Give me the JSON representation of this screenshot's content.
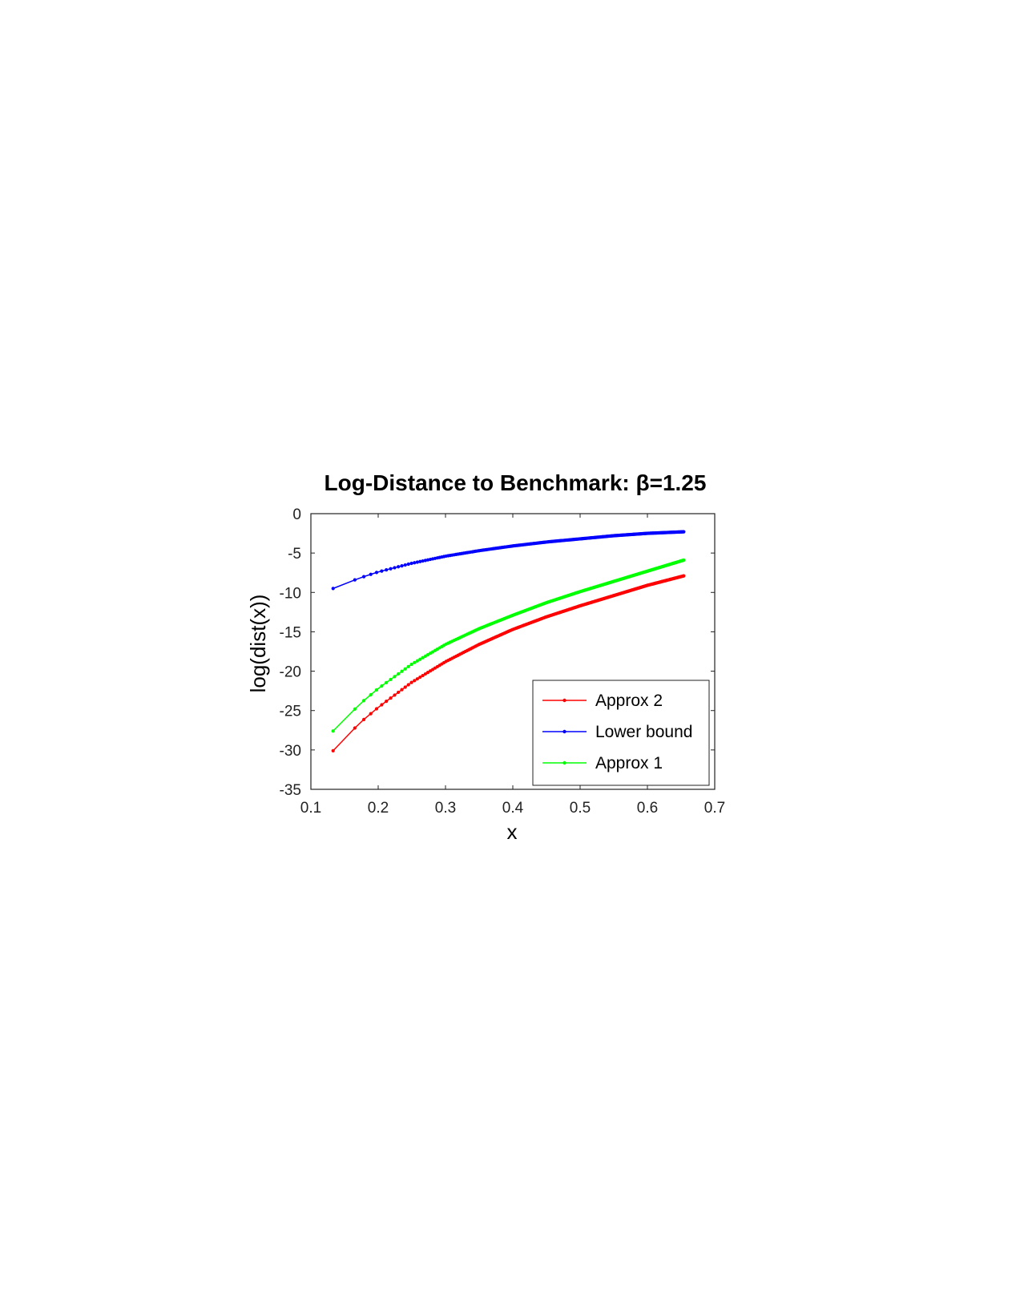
{
  "chart_data": {
    "type": "line",
    "title": "Log-Distance to Benchmark: β=1.25",
    "xlabel": "x",
    "ylabel": "log(dist(x))",
    "xlim": [
      0.1,
      0.7
    ],
    "ylim": [
      -35,
      0
    ],
    "xticks": [
      "0.1",
      "0.2",
      "0.3",
      "0.4",
      "0.5",
      "0.6",
      "0.7"
    ],
    "yticks": [
      "0",
      "-5",
      "-10",
      "-15",
      "-20",
      "-25",
      "-30",
      "-35"
    ],
    "grid": false,
    "legend_position": "bottom-right",
    "series": [
      {
        "name": "Approx 2",
        "color": "#ff0000",
        "x": [
          0.133,
          0.15,
          0.175,
          0.2,
          0.25,
          0.3,
          0.35,
          0.4,
          0.45,
          0.5,
          0.55,
          0.6,
          0.654
        ],
        "y": [
          -30.1,
          -28.5,
          -26.4,
          -24.6,
          -21.4,
          -18.8,
          -16.6,
          -14.7,
          -13.1,
          -11.7,
          -10.4,
          -9.1,
          -7.9
        ]
      },
      {
        "name": "Lower bound",
        "color": "#0000ff",
        "x": [
          0.133,
          0.15,
          0.175,
          0.2,
          0.25,
          0.3,
          0.35,
          0.4,
          0.45,
          0.5,
          0.55,
          0.6,
          0.654
        ],
        "y": [
          -9.5,
          -8.9,
          -8.1,
          -7.4,
          -6.3,
          -5.4,
          -4.7,
          -4.1,
          -3.6,
          -3.2,
          -2.8,
          -2.5,
          -2.3
        ]
      },
      {
        "name": "Approx 1",
        "color": "#00ff00",
        "x": [
          0.133,
          0.15,
          0.175,
          0.2,
          0.25,
          0.3,
          0.35,
          0.4,
          0.45,
          0.5,
          0.55,
          0.6,
          0.654
        ],
        "y": [
          -27.6,
          -26.1,
          -24.0,
          -22.2,
          -19.1,
          -16.6,
          -14.6,
          -12.9,
          -11.3,
          -9.9,
          -8.6,
          -7.3,
          -5.9
        ]
      }
    ]
  }
}
